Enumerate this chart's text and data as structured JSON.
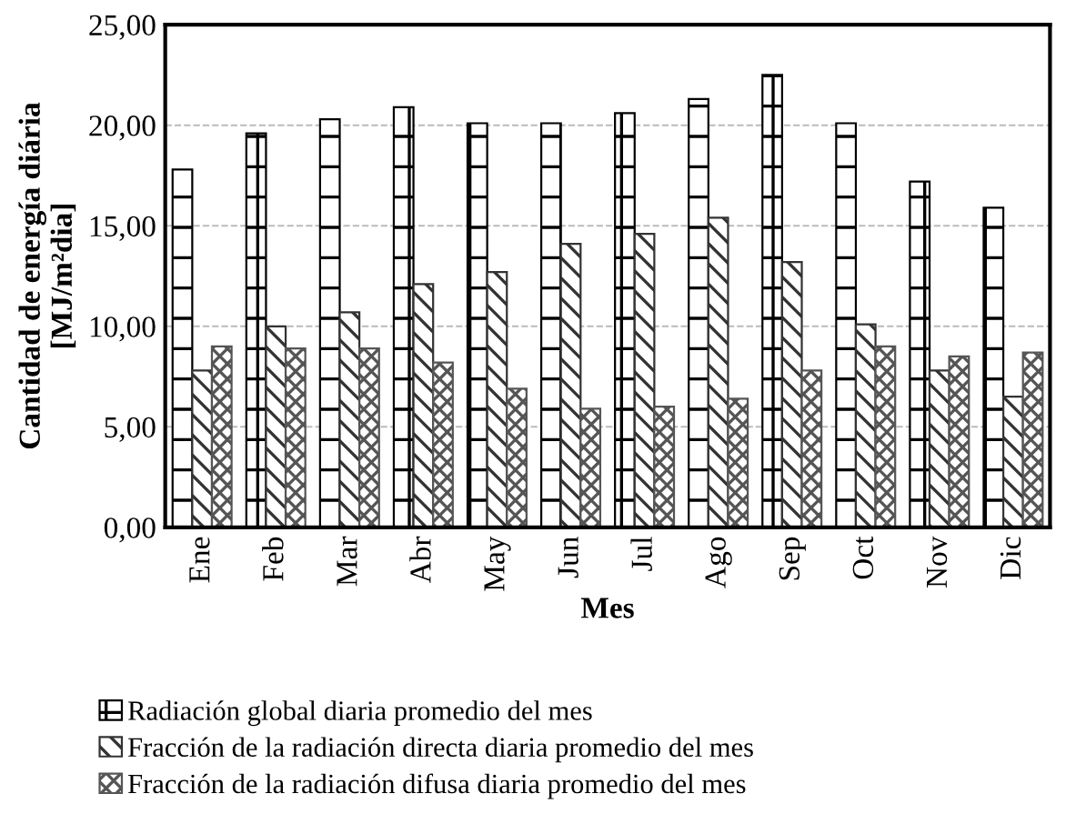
{
  "chart_data": {
    "type": "bar",
    "xlabel": "Mes",
    "ylabel": "Cantidad de energía diária\n[MJ/m²dia]",
    "categories": [
      "Ene",
      "Feb",
      "Mar",
      "Abr",
      "May",
      "Jun",
      "Jul",
      "Ago",
      "Sep",
      "Oct",
      "Nov",
      "Dic"
    ],
    "series": [
      {
        "name": "Radiación global diaria promedio del mes",
        "color": "#000000",
        "values": [
          17.8,
          19.6,
          20.3,
          20.9,
          20.1,
          20.1,
          20.6,
          21.3,
          22.5,
          20.1,
          17.2,
          15.9
        ]
      },
      {
        "name": "Fracción de la radiación directa diaria promedio del mes",
        "color": "#333333",
        "values": [
          7.8,
          10.0,
          10.7,
          12.1,
          12.7,
          14.1,
          14.6,
          15.4,
          13.2,
          10.1,
          7.8,
          6.5
        ]
      },
      {
        "name": "Fracción de la radiación difusa diaria promedio del mes",
        "color": "#555555",
        "values": [
          9.0,
          8.9,
          8.9,
          8.2,
          6.9,
          5.9,
          6.0,
          6.4,
          7.8,
          9.0,
          8.5,
          8.7
        ]
      }
    ],
    "ylim": [
      0,
      25
    ],
    "yticks": [
      {
        "value": 0,
        "label": "0,00"
      },
      {
        "value": 5,
        "label": "5,00"
      },
      {
        "value": 10,
        "label": "10,00"
      },
      {
        "value": 15,
        "label": "15,00"
      },
      {
        "value": 20,
        "label": "20,00"
      },
      {
        "value": 25,
        "label": "25,00"
      }
    ],
    "grid": "y",
    "legend": "bottom"
  }
}
